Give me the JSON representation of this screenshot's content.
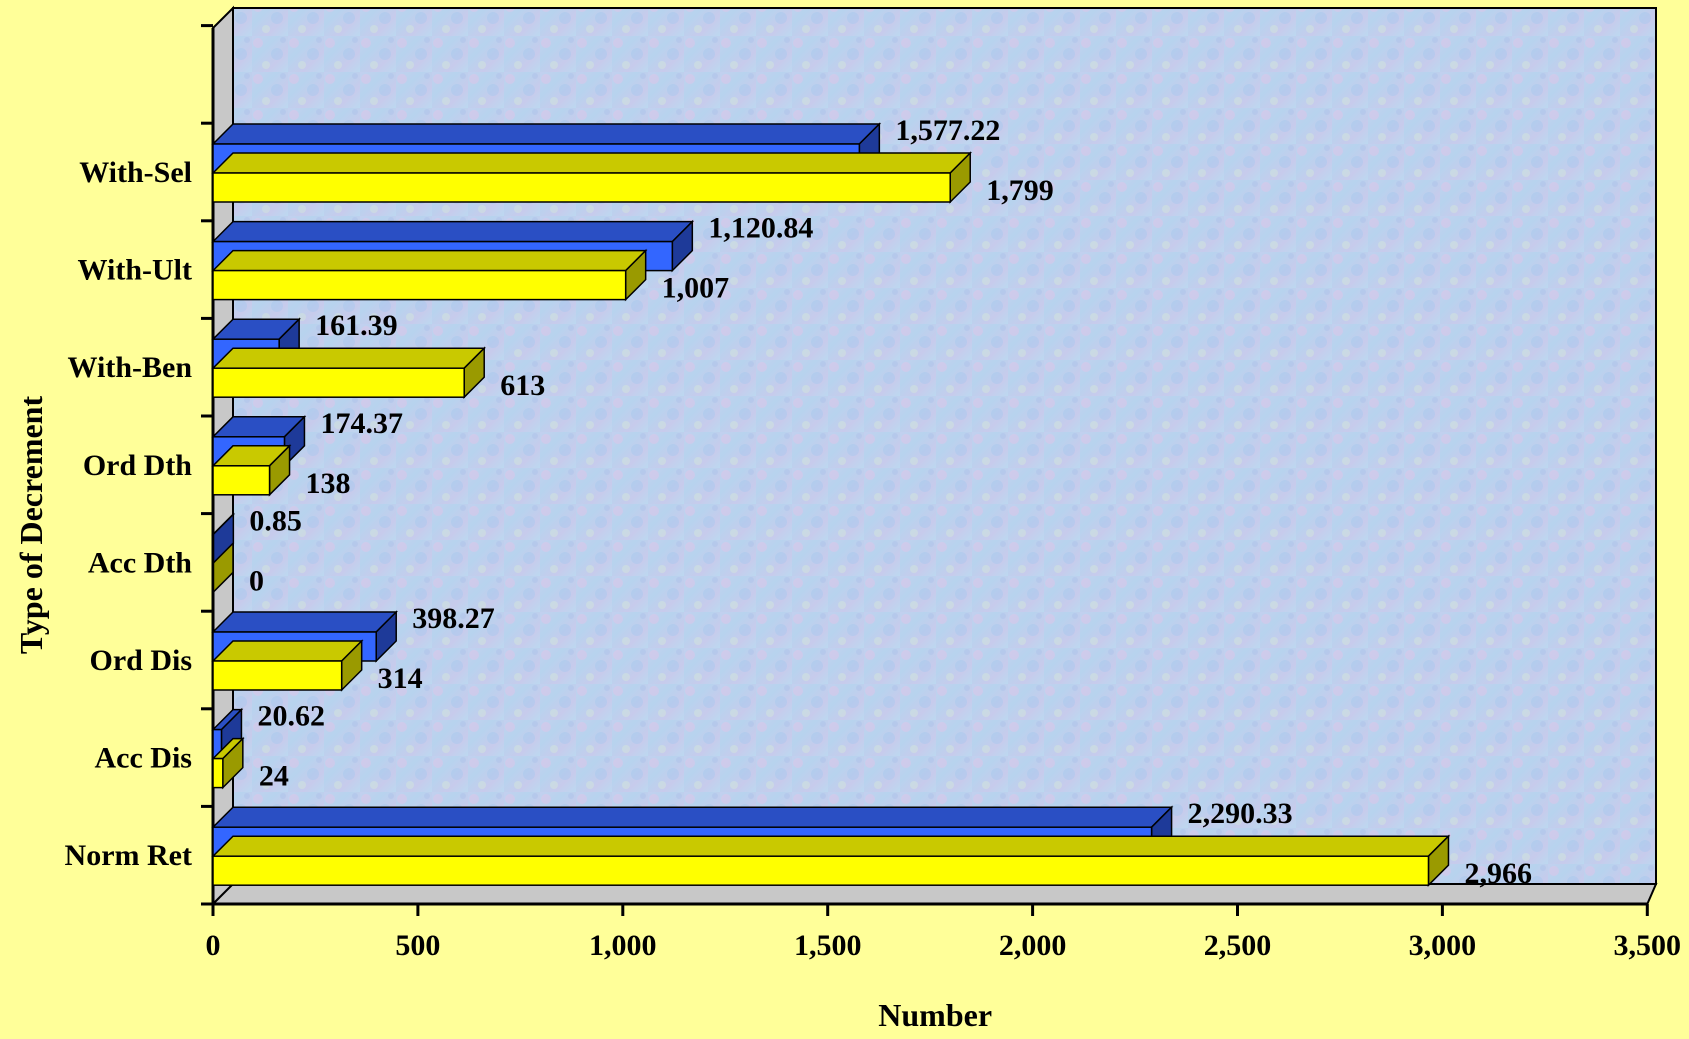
{
  "chart_data": {
    "type": "bar",
    "orientation": "horizontal",
    "three_d": true,
    "categories": [
      "Norm Ret",
      "Acc Dis",
      "Ord Dis",
      "Acc Dth",
      "Ord Dth",
      "With-Ben",
      "With-Ult",
      "With-Sel"
    ],
    "series": [
      {
        "color": "#3366ff",
        "values": [
          2290.33,
          20.62,
          398.27,
          0.85,
          174.37,
          161.39,
          1120.84,
          1577.22
        ],
        "labels": [
          "2,290.33",
          "20.62",
          "398.27",
          "0.85",
          "174.37",
          "161.39",
          "1,120.84",
          "1,577.22"
        ]
      },
      {
        "color": "#ffff00",
        "values": [
          2966,
          24,
          314,
          0,
          138,
          613,
          1007,
          1799
        ],
        "labels": [
          "2,966",
          "24",
          "314",
          "0",
          "138",
          "613",
          "1,007",
          "1,799"
        ]
      }
    ],
    "xlabel": "Number",
    "ylabel": "Type of Decrement",
    "xlim": [
      0,
      3500
    ],
    "xticks": [
      {
        "value": 0,
        "label": "0"
      },
      {
        "value": 500,
        "label": "500"
      },
      {
        "value": 1000,
        "label": "1,000"
      },
      {
        "value": 1500,
        "label": "1,500"
      },
      {
        "value": 2000,
        "label": "2,000"
      },
      {
        "value": 2500,
        "label": "2,500"
      },
      {
        "value": 3000,
        "label": "3,000"
      },
      {
        "value": 3500,
        "label": "3,500"
      }
    ],
    "grid": false,
    "legend": "none"
  }
}
